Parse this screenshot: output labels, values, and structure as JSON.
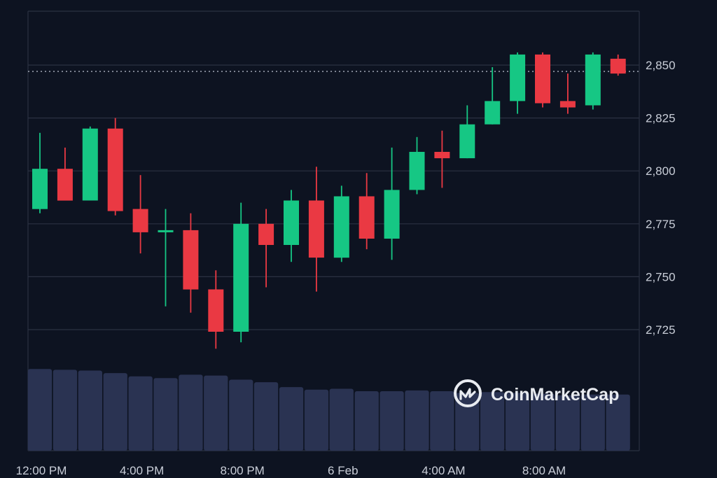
{
  "chart_data": {
    "type": "candlestick",
    "colors": {
      "background": "#0d1321",
      "up": "#16c784",
      "down": "#ea3943",
      "volume": "#2a3352",
      "grid": "#2b3142",
      "text": "#c9ced8"
    },
    "y_ticks": [
      "2,850",
      "2,825",
      "2,800",
      "2,775",
      "2,750",
      "2,725"
    ],
    "y_tick_values": [
      2850,
      2825,
      2800,
      2775,
      2750,
      2725
    ],
    "ylim": [
      2705,
      2875
    ],
    "x_ticks": [
      "12:00 PM",
      "4:00 PM",
      "8:00 PM",
      "6 Feb",
      "4:00 AM",
      "8:00 AM"
    ],
    "x_tick_index": [
      0,
      4,
      8,
      12,
      16,
      20
    ],
    "current_price": 2847,
    "grid": true,
    "candles": [
      {
        "o": 2782,
        "h": 2818,
        "l": 2780,
        "c": 2801,
        "v": 0.99
      },
      {
        "o": 2801,
        "h": 2811,
        "l": 2786,
        "c": 2786,
        "v": 0.98
      },
      {
        "o": 2786,
        "h": 2821,
        "l": 2786,
        "c": 2820,
        "v": 0.97
      },
      {
        "o": 2820,
        "h": 2825,
        "l": 2779,
        "c": 2781,
        "v": 0.94
      },
      {
        "o": 2782,
        "h": 2798,
        "l": 2761,
        "c": 2771,
        "v": 0.9
      },
      {
        "o": 2771,
        "h": 2782,
        "l": 2736,
        "c": 2772,
        "v": 0.88
      },
      {
        "o": 2772,
        "h": 2780,
        "l": 2733,
        "c": 2744,
        "v": 0.92
      },
      {
        "o": 2744,
        "h": 2753,
        "l": 2716,
        "c": 2724,
        "v": 0.91
      },
      {
        "o": 2724,
        "h": 2785,
        "l": 2719,
        "c": 2775,
        "v": 0.86
      },
      {
        "o": 2775,
        "h": 2782,
        "l": 2745,
        "c": 2765,
        "v": 0.83
      },
      {
        "o": 2765,
        "h": 2791,
        "l": 2757,
        "c": 2786,
        "v": 0.77
      },
      {
        "o": 2786,
        "h": 2802,
        "l": 2743,
        "c": 2759,
        "v": 0.74
      },
      {
        "o": 2759,
        "h": 2793,
        "l": 2757,
        "c": 2788,
        "v": 0.75
      },
      {
        "o": 2788,
        "h": 2799,
        "l": 2763,
        "c": 2768,
        "v": 0.72
      },
      {
        "o": 2768,
        "h": 2811,
        "l": 2758,
        "c": 2791,
        "v": 0.72
      },
      {
        "o": 2791,
        "h": 2816,
        "l": 2789,
        "c": 2809,
        "v": 0.73
      },
      {
        "o": 2809,
        "h": 2819,
        "l": 2792,
        "c": 2806,
        "v": 0.72
      },
      {
        "o": 2806,
        "h": 2831,
        "l": 2806,
        "c": 2822,
        "v": 0.7
      },
      {
        "o": 2822,
        "h": 2849,
        "l": 2822,
        "c": 2833,
        "v": 0.71
      },
      {
        "o": 2833,
        "h": 2856,
        "l": 2827,
        "c": 2855,
        "v": 0.7
      },
      {
        "o": 2855,
        "h": 2856,
        "l": 2830,
        "c": 2832,
        "v": 0.69
      },
      {
        "o": 2833,
        "h": 2846,
        "l": 2827,
        "c": 2830,
        "v": 0.67
      },
      {
        "o": 2831,
        "h": 2856,
        "l": 2829,
        "c": 2855,
        "v": 0.68
      },
      {
        "o": 2853,
        "h": 2855,
        "l": 2845,
        "c": 2846,
        "v": 0.68
      }
    ]
  },
  "watermark": {
    "text": "CoinMarketCap",
    "icon": "coinmarketcap-logo-icon"
  }
}
